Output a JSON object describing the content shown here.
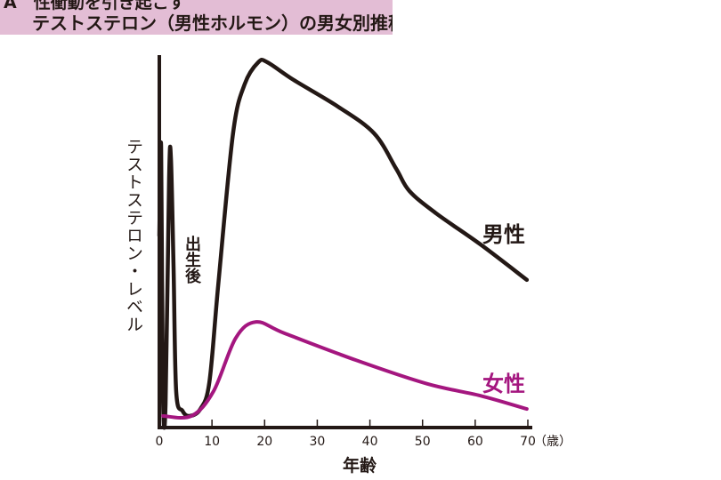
{
  "header": {
    "line1": "A　性衝動を引き起こす",
    "line2": "テストステロン（男性ホルモン）の男女別推移"
  },
  "colors": {
    "male": "#231815",
    "female": "#a4167f",
    "header_bg": "#e3bdd5"
  },
  "chart_data": {
    "type": "line",
    "title": "テストステロン（男性ホルモン）の男女別推移",
    "xlabel": "年齢",
    "ylabel": "テストステロン・レベル",
    "x_unit": "（歳）",
    "xticks": [
      0,
      10,
      20,
      30,
      40,
      50,
      60,
      70
    ],
    "xlim": [
      0,
      70
    ],
    "ylim": [
      0,
      100
    ],
    "annotation": "出生後",
    "series": [
      {
        "name": "男性",
        "points": [
          [
            0,
            51.8
          ],
          [
            0.34,
            75.9
          ],
          [
            0.68,
            9.6
          ],
          [
            1.18,
            6
          ],
          [
            1.86,
            67.5
          ],
          [
            2.2,
            72.8
          ],
          [
            2.7,
            43.4
          ],
          [
            3.2,
            9.6
          ],
          [
            4.4,
            4.3
          ],
          [
            5.75,
            2.9
          ],
          [
            7.8,
            4.8
          ],
          [
            9.5,
            12
          ],
          [
            11.2,
            38.6
          ],
          [
            14,
            79.5
          ],
          [
            16.2,
            92.8
          ],
          [
            18.8,
            98.8
          ],
          [
            20.5,
            98.8
          ],
          [
            25.5,
            94
          ],
          [
            34,
            86.7
          ],
          [
            40.8,
            79.5
          ],
          [
            45,
            69.9
          ],
          [
            47.5,
            63.9
          ],
          [
            52.6,
            57.8
          ],
          [
            61,
            49.4
          ],
          [
            69.8,
            39.8
          ]
        ]
      },
      {
        "name": "女性",
        "points": [
          [
            0.7,
            2.9
          ],
          [
            6.1,
            2.9
          ],
          [
            10.3,
            9.6
          ],
          [
            14.5,
            24
          ],
          [
            18.4,
            28.4
          ],
          [
            23.8,
            25.3
          ],
          [
            37.4,
            18
          ],
          [
            50.9,
            11.6
          ],
          [
            61,
            8.4
          ],
          [
            69.8,
            4.8
          ]
        ]
      }
    ]
  }
}
